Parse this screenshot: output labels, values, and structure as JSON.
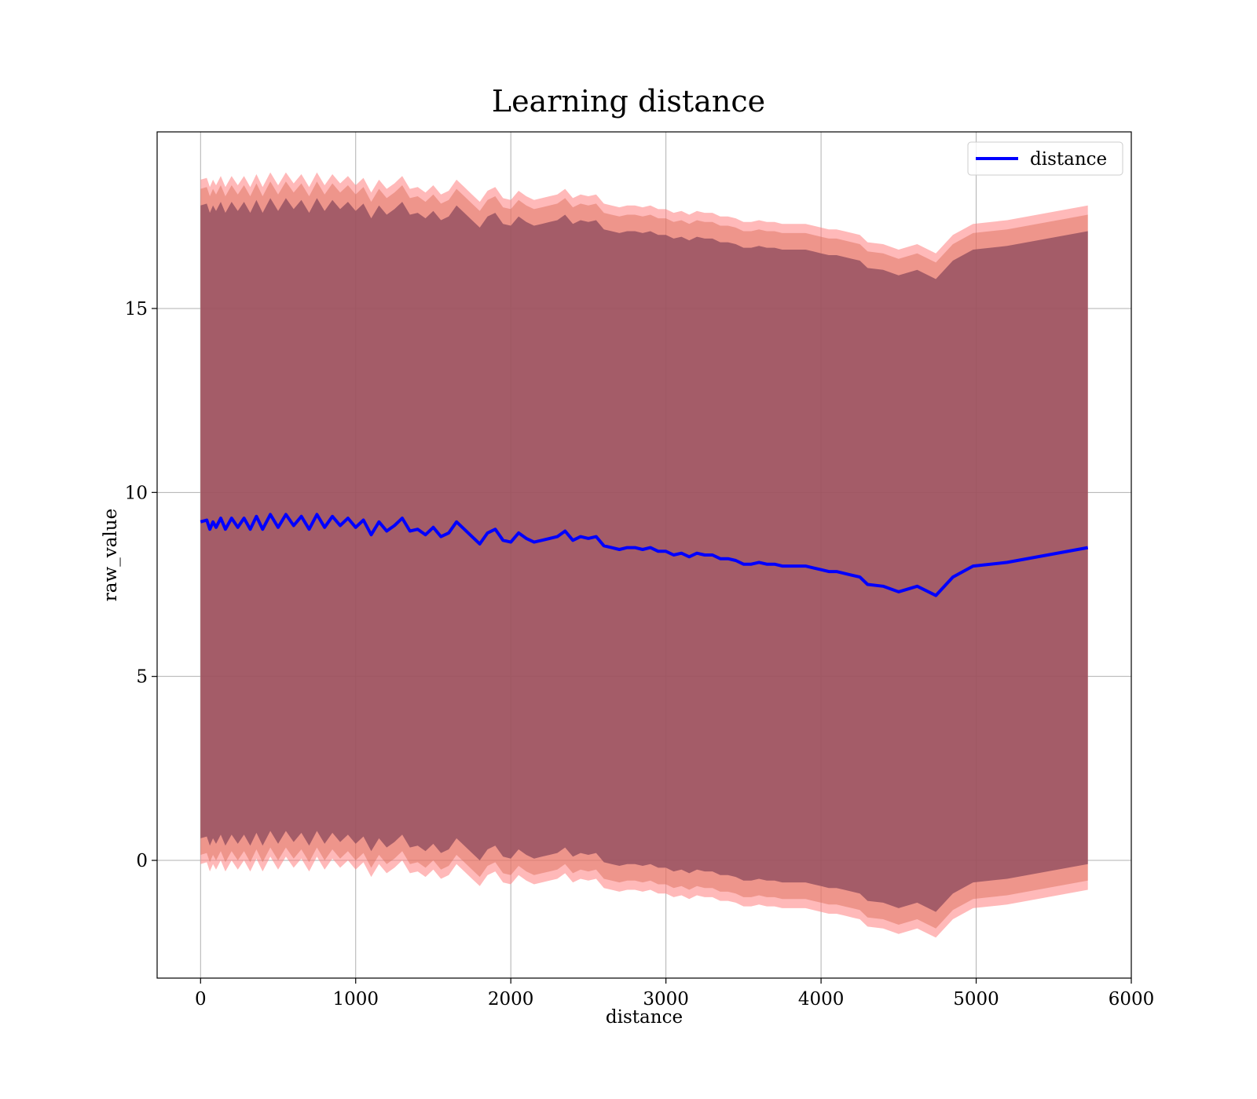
{
  "chart_data": {
    "type": "line",
    "title": "Learning distance",
    "xlabel": "distance",
    "ylabel": "raw_value",
    "xlim": [
      -280,
      6000
    ],
    "ylim": [
      -3.2,
      19.8
    ],
    "x_ticks": [
      0,
      1000,
      2000,
      3000,
      4000,
      5000,
      6000
    ],
    "y_ticks": [
      0,
      5,
      10,
      15
    ],
    "grid": true,
    "legend_position": "top-right",
    "series": [
      {
        "name": "distance",
        "color": "#0000ff",
        "x": [
          0,
          40,
          60,
          80,
          100,
          130,
          160,
          200,
          240,
          280,
          320,
          360,
          400,
          450,
          500,
          550,
          600,
          650,
          700,
          750,
          800,
          850,
          900,
          950,
          1000,
          1050,
          1100,
          1150,
          1200,
          1250,
          1300,
          1350,
          1400,
          1450,
          1500,
          1550,
          1600,
          1650,
          1700,
          1750,
          1800,
          1850,
          1900,
          1950,
          2000,
          2050,
          2100,
          2150,
          2200,
          2250,
          2300,
          2350,
          2400,
          2450,
          2500,
          2550,
          2600,
          2650,
          2700,
          2750,
          2800,
          2850,
          2900,
          2950,
          3000,
          3050,
          3100,
          3150,
          3200,
          3250,
          3300,
          3350,
          3400,
          3450,
          3500,
          3550,
          3600,
          3650,
          3700,
          3750,
          3800,
          3850,
          3900,
          3950,
          4000,
          4050,
          4100,
          4150,
          4200,
          4250,
          4300,
          4400,
          4500,
          4620,
          4740,
          4850,
          4980,
          5200,
          5720
        ],
        "values": [
          9.2,
          9.25,
          9.0,
          9.2,
          9.05,
          9.3,
          9.0,
          9.3,
          9.05,
          9.3,
          9.0,
          9.35,
          9.0,
          9.4,
          9.05,
          9.4,
          9.1,
          9.35,
          9.0,
          9.4,
          9.05,
          9.35,
          9.1,
          9.3,
          9.05,
          9.25,
          8.85,
          9.2,
          8.95,
          9.1,
          9.3,
          8.95,
          9.0,
          8.85,
          9.05,
          8.8,
          8.9,
          9.2,
          9.0,
          8.8,
          8.6,
          8.9,
          9.0,
          8.7,
          8.65,
          8.9,
          8.75,
          8.65,
          8.7,
          8.75,
          8.8,
          8.95,
          8.7,
          8.8,
          8.75,
          8.8,
          8.55,
          8.5,
          8.45,
          8.5,
          8.5,
          8.45,
          8.5,
          8.4,
          8.4,
          8.3,
          8.35,
          8.25,
          8.35,
          8.3,
          8.3,
          8.2,
          8.2,
          8.15,
          8.05,
          8.05,
          8.1,
          8.05,
          8.05,
          8.0,
          8.0,
          8.0,
          8.0,
          7.95,
          7.9,
          7.85,
          7.85,
          7.8,
          7.75,
          7.7,
          7.5,
          7.45,
          7.3,
          7.45,
          7.2,
          7.7,
          8.0,
          8.1,
          8.5
        ]
      }
    ],
    "bands": [
      {
        "color": "#8b4a5c",
        "offset": 8.6,
        "opacity": 0.75
      },
      {
        "color": "#d96a55",
        "offset": 9.05,
        "opacity": 0.45
      },
      {
        "color": "#ff8080",
        "offset": 9.3,
        "opacity": 0.55
      }
    ]
  }
}
